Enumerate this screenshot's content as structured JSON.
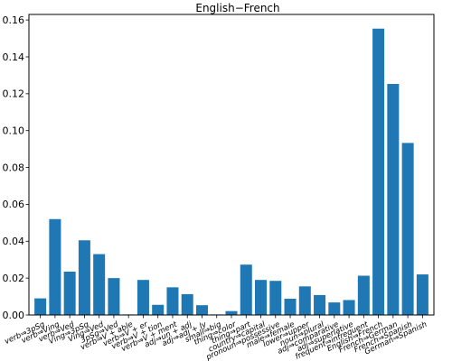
{
  "chart_data": {
    "type": "bar",
    "title": "English−French",
    "xlabel": "",
    "ylabel": "",
    "ylim": [
      0,
      0.163
    ],
    "yticks": [
      "0.00",
      "0.02",
      "0.04",
      "0.06",
      "0.08",
      "0.10",
      "0.12",
      "0.14",
      "0.16"
    ],
    "grid": false,
    "bar_color": "#1f77b4",
    "categories": [
      "verb⇒3pSg",
      "verb⇒Ving",
      "verb⇒Ved",
      "Ving⇒3pSg",
      "Ving⇒Ved",
      "3pSg⇒Ved",
      "verb⇒V + able",
      "verb⇒V + er",
      "verb⇒V + tion",
      "verb⇒V + ment",
      "adj⇒un + adj",
      "adj⇒adj + ly",
      "small⇒big",
      "thing⇒color",
      "thing⇒part",
      "country⇒capital",
      "pronoun⇒possessive",
      "male⇒female",
      "lower⇒upper",
      "noun⇒plural",
      "adj⇒comparative",
      "adj⇒superlative",
      "frequent⇒infrequent",
      "English⇒French",
      "French⇒German",
      "French⇒Spanish",
      "German⇒Spanish"
    ],
    "values": [
      0.009,
      0.052,
      0.0235,
      0.0405,
      0.033,
      0.02,
      0.0003,
      0.019,
      0.0055,
      0.015,
      0.0113,
      0.0053,
      0.0003,
      0.0021,
      0.0273,
      0.019,
      0.0185,
      0.0088,
      0.0155,
      0.0108,
      0.0068,
      0.0081,
      0.0213,
      0.1553,
      0.1253,
      0.0933,
      0.022
    ]
  }
}
